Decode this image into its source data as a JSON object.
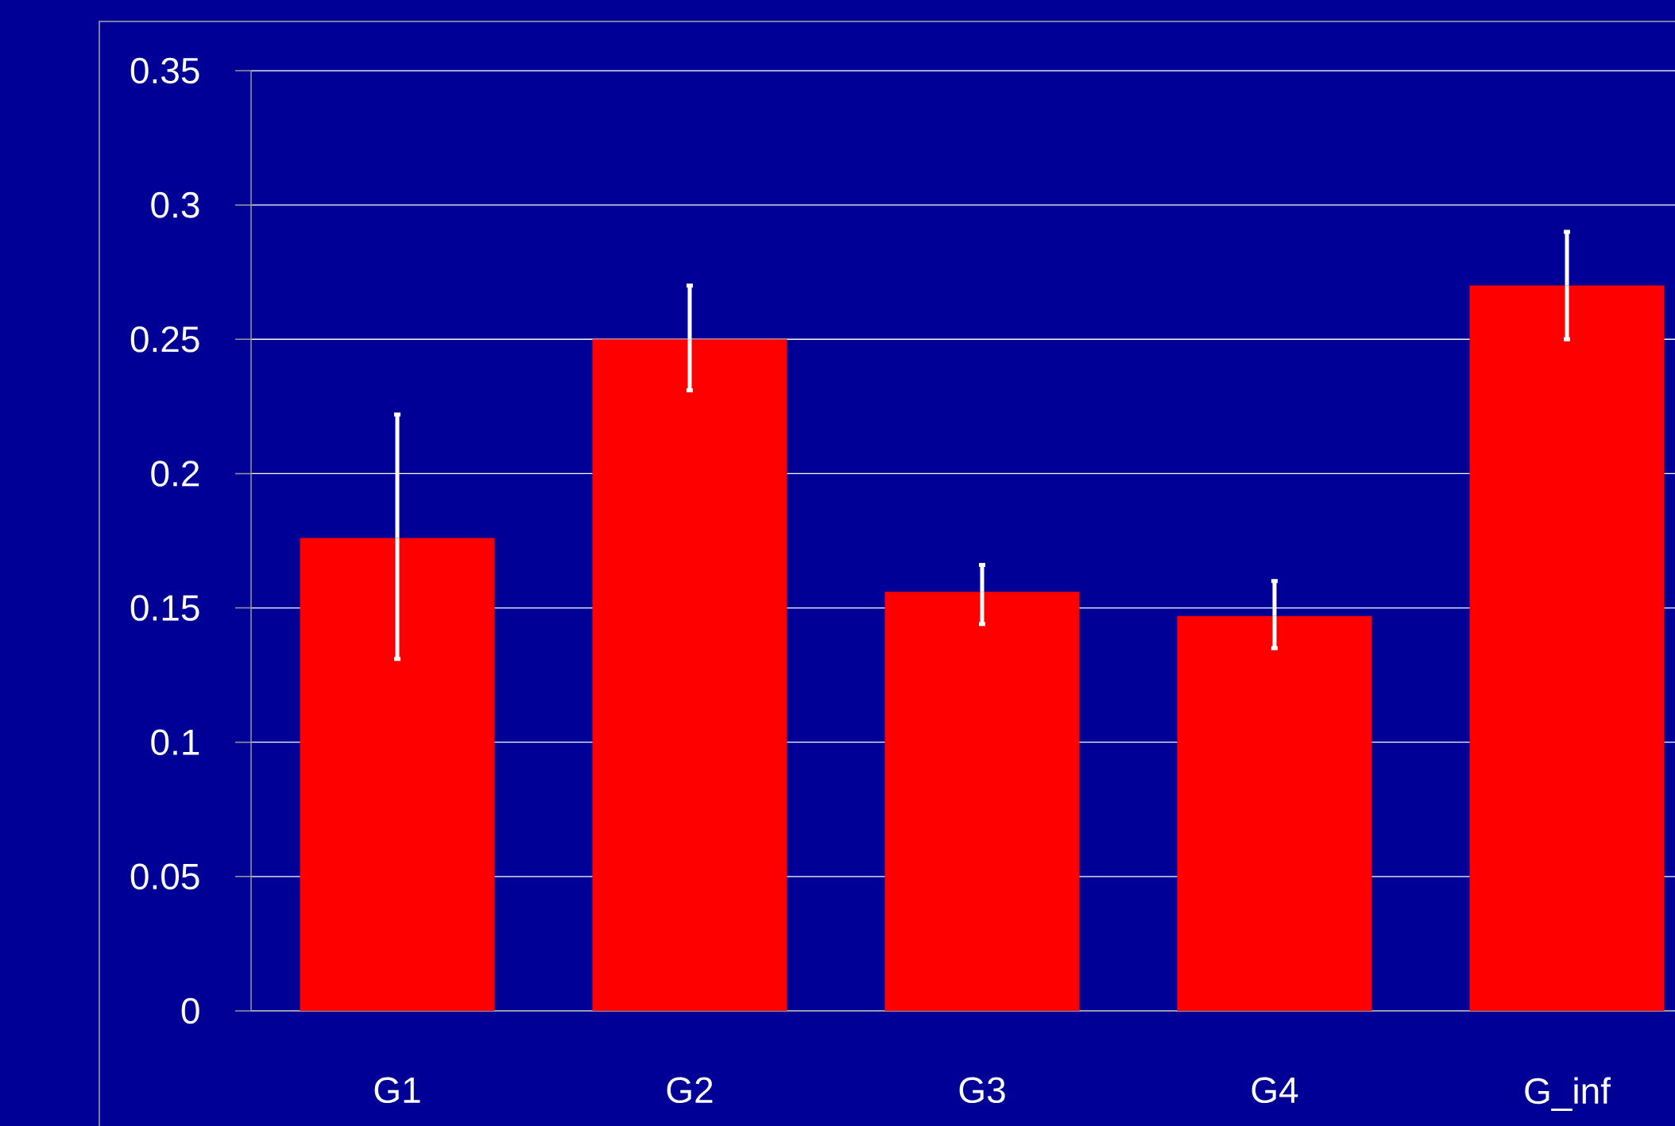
{
  "chart_data": {
    "type": "bar",
    "categories": [
      "G1",
      "G2",
      "G3",
      "G4",
      "G_inf"
    ],
    "values": [
      0.176,
      0.25,
      0.156,
      0.147,
      0.27
    ],
    "errors": [
      [
        0.131,
        0.222
      ],
      [
        0.231,
        0.27
      ],
      [
        0.144,
        0.166
      ],
      [
        0.135,
        0.16
      ],
      [
        0.25,
        0.29
      ]
    ],
    "color": "#ff0000",
    "ylim": [
      0,
      0.35
    ],
    "yticks": [
      0,
      0.05,
      0.1,
      0.15,
      0.2,
      0.25,
      0.3,
      0.35
    ],
    "grid": "y"
  }
}
